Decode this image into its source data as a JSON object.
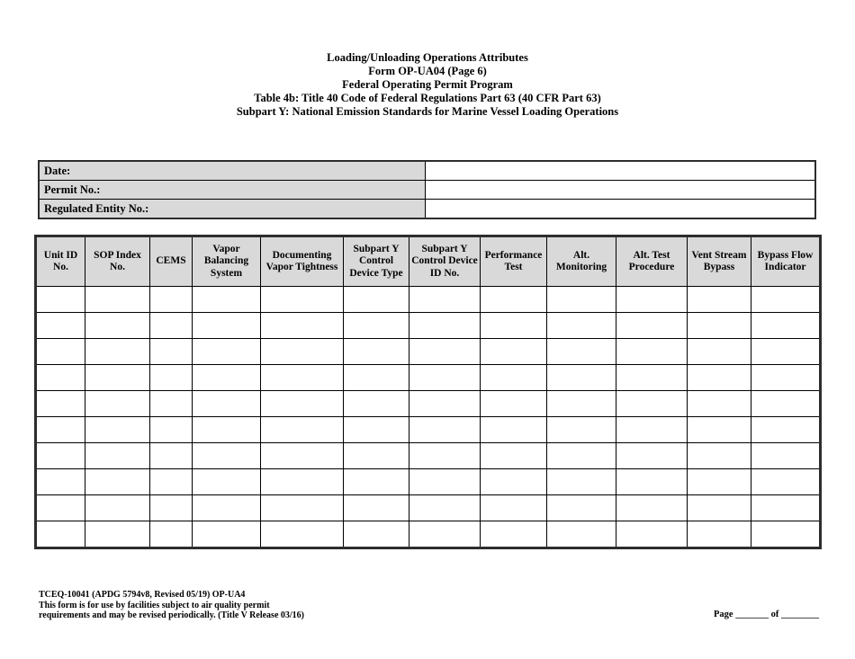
{
  "form": {
    "title_lines": [
      "Loading/Unloading Operations Attributes",
      "Form OP-UA04 (Page 6)",
      "Federal Operating Permit Program",
      "Table 4b: Title 40 Code of Federal Regulations Part 63 (40 CFR Part 63)",
      "Subpart Y: National Emission Standards for Marine Vessel Loading Operations"
    ]
  },
  "info_table": {
    "rows": [
      {
        "label": "Date:",
        "value": ""
      },
      {
        "label": "Permit No.:",
        "value": ""
      },
      {
        "label": "Regulated Entity No.:",
        "value": ""
      }
    ]
  },
  "attributes_table": {
    "columns": [
      "Unit ID No.",
      "SOP Index No.",
      "CEMS",
      "Vapor Balancing System",
      "Documenting Vapor Tightness",
      "Subpart Y Control Device Type",
      "Subpart Y Control Device ID No.",
      "Performance Test",
      "Alt. Monitoring",
      "Alt. Test Procedure",
      "Vent Stream Bypass",
      "Bypass Flow Indicator"
    ],
    "empty_row_count": 10
  },
  "footer": {
    "left_lines": [
      "TCEQ-10041 (APDG 5794v8, Revised 05/19) OP-UA4",
      "This form is for use by facilities subject to air quality permit",
      "requirements and may be revised periodically. (Title V Release 03/16)"
    ],
    "page_line": "Page _______ of ________"
  },
  "colors": {
    "shaded_cell": "#d9d9d9",
    "grid_border": "#000000",
    "outer_border": "#2d2d2d",
    "page_background": "#ffffff"
  }
}
